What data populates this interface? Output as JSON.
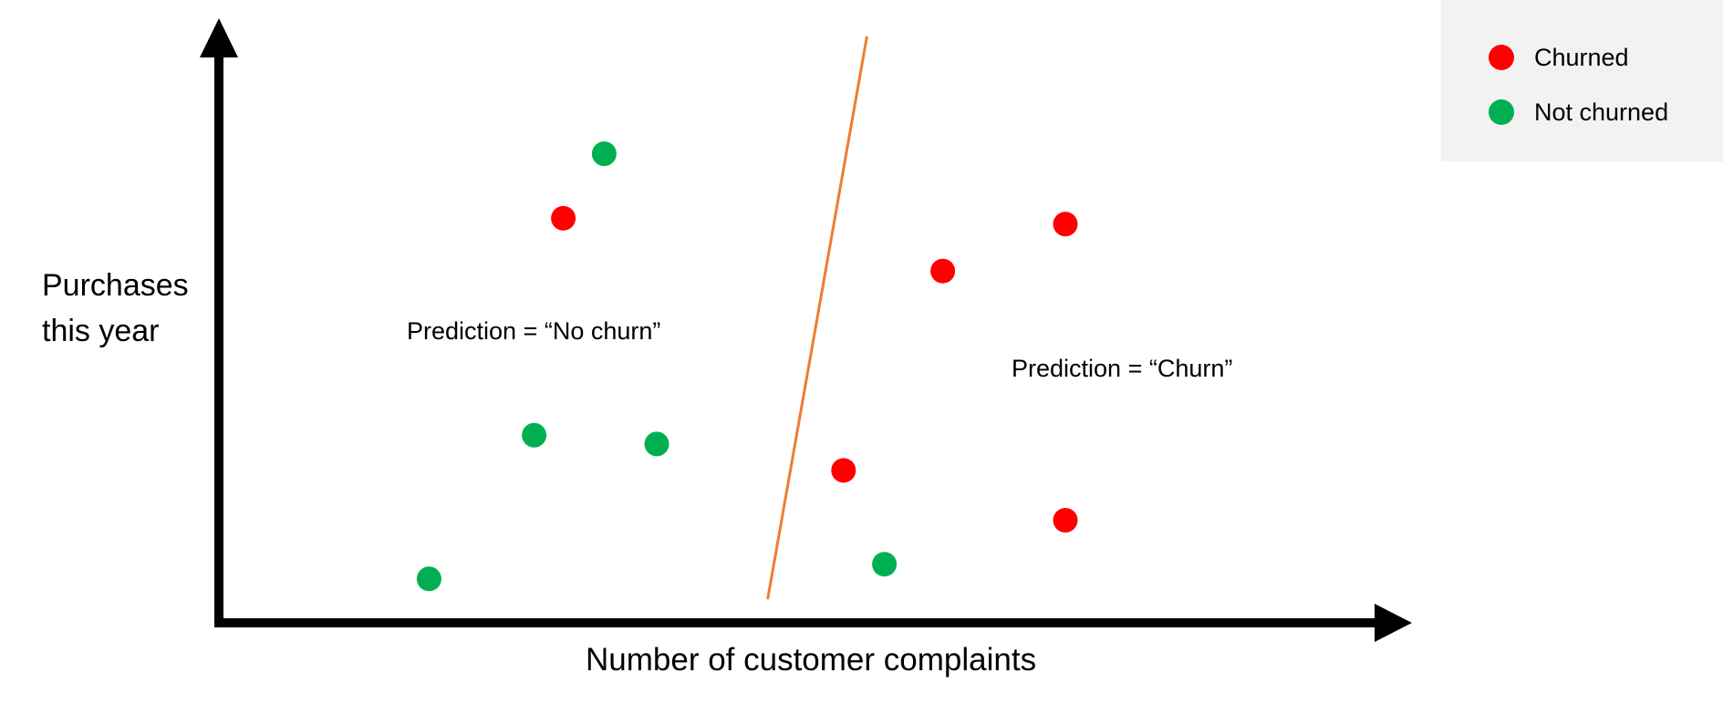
{
  "chart_data": {
    "type": "scatter",
    "title": "",
    "xlabel": "Number of customer complaints",
    "ylabel": "Purchases this year",
    "xlim": [
      0,
      10
    ],
    "ylim": [
      0,
      10
    ],
    "grid": false,
    "legend_position": "top-right",
    "series": [
      {
        "name": "Churned",
        "color": "#ff0000",
        "points": [
          {
            "x": 2.95,
            "y": 6.9
          },
          {
            "x": 6.2,
            "y": 6.0
          },
          {
            "x": 7.25,
            "y": 6.8
          },
          {
            "x": 5.35,
            "y": 2.6
          },
          {
            "x": 7.25,
            "y": 1.75
          }
        ]
      },
      {
        "name": "Not churned",
        "color": "#00b050",
        "points": [
          {
            "x": 3.3,
            "y": 8.0
          },
          {
            "x": 2.7,
            "y": 3.2
          },
          {
            "x": 3.75,
            "y": 3.05
          },
          {
            "x": 1.8,
            "y": 0.75
          },
          {
            "x": 5.7,
            "y": 1.0
          }
        ]
      }
    ],
    "decision_boundary": {
      "color": "#ed7d31",
      "points": [
        {
          "x": 5.55,
          "y": 10.0
        },
        {
          "x": 4.7,
          "y": 0.4
        }
      ]
    },
    "annotations": [
      {
        "text": "Prediction = “No churn”"
      },
      {
        "text": "Prediction = “Churn”"
      }
    ]
  },
  "legend": {
    "items": [
      {
        "label": "Churned",
        "color": "#ff0000"
      },
      {
        "label": "Not churned",
        "color": "#00b050"
      }
    ]
  }
}
